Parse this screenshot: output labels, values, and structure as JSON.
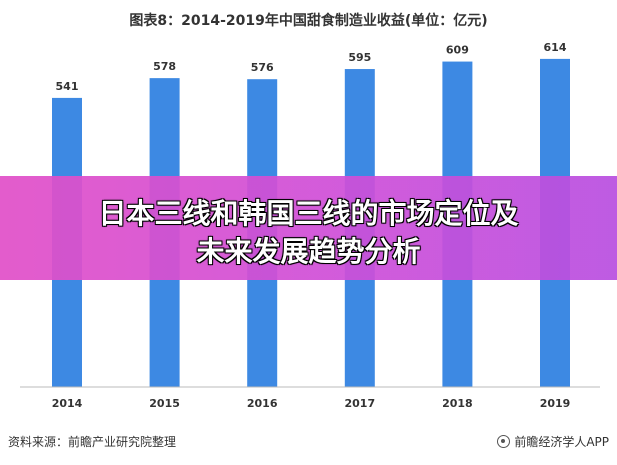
{
  "chart_data": {
    "type": "bar",
    "title": "图表8：2014-2019年中国甜食制造业收益(单位：亿元)",
    "categories": [
      "2014",
      "2015",
      "2016",
      "2017",
      "2018",
      "2019"
    ],
    "values": [
      541,
      578,
      576,
      595,
      609,
      614
    ],
    "ylim": [
      0,
      640
    ],
    "grid": false,
    "bar_color": "#3d89e3"
  },
  "overlay": {
    "line1": "日本三线和韩国三线的市场定位及",
    "line2": "未来发展趋势分析"
  },
  "footer": {
    "source": "资料来源：前瞻产业研究院整理",
    "brand": "前瞻经济学人APP"
  }
}
